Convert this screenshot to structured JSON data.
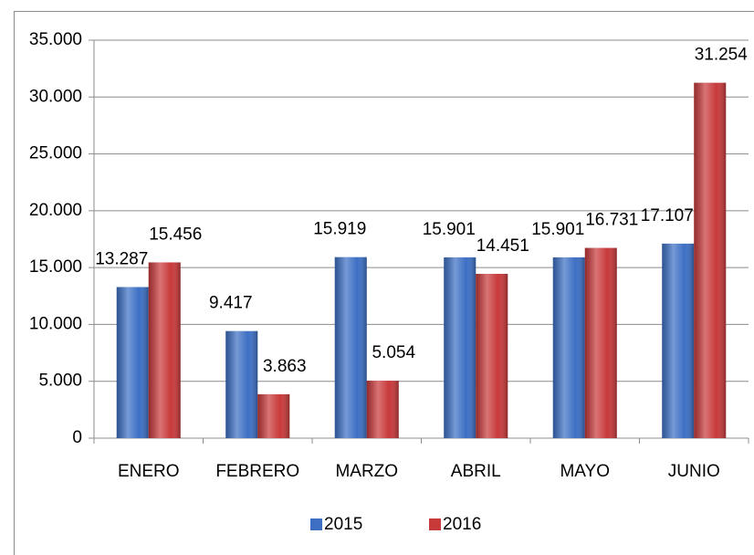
{
  "chart_data": {
    "type": "bar",
    "categories": [
      "ENERO",
      "FEBRERO",
      "MARZO",
      "ABRIL",
      "MAYO",
      "JUNIO"
    ],
    "series": [
      {
        "name": "2015",
        "color": "#3c6fc4",
        "values": [
          13287,
          9417,
          15919,
          15901,
          15901,
          17107
        ],
        "value_labels": [
          "13.287",
          "9.417",
          "15.919",
          "15.901",
          "15.901",
          "17.107"
        ]
      },
      {
        "name": "2016",
        "color": "#c8393a",
        "values": [
          15456,
          3863,
          5054,
          14451,
          16731,
          31254
        ],
        "value_labels": [
          "15.456",
          "3.863",
          "5.054",
          "14.451",
          "16.731",
          "31.254"
        ]
      }
    ],
    "ylim": [
      0,
      35000
    ],
    "yticks": [
      0,
      {
        "value": 5000,
        "label": "5.000"
      },
      {
        "value": 10000,
        "label": "10.000"
      },
      {
        "value": 15000,
        "label": "15.000"
      },
      {
        "value": 20000,
        "label": "20.000"
      },
      {
        "value": 25000,
        "label": "25.000"
      },
      {
        "value": 30000,
        "label": "30.000"
      },
      {
        "value": 35000,
        "label": "35.000"
      }
    ],
    "grid": true,
    "legend": "bottom"
  }
}
